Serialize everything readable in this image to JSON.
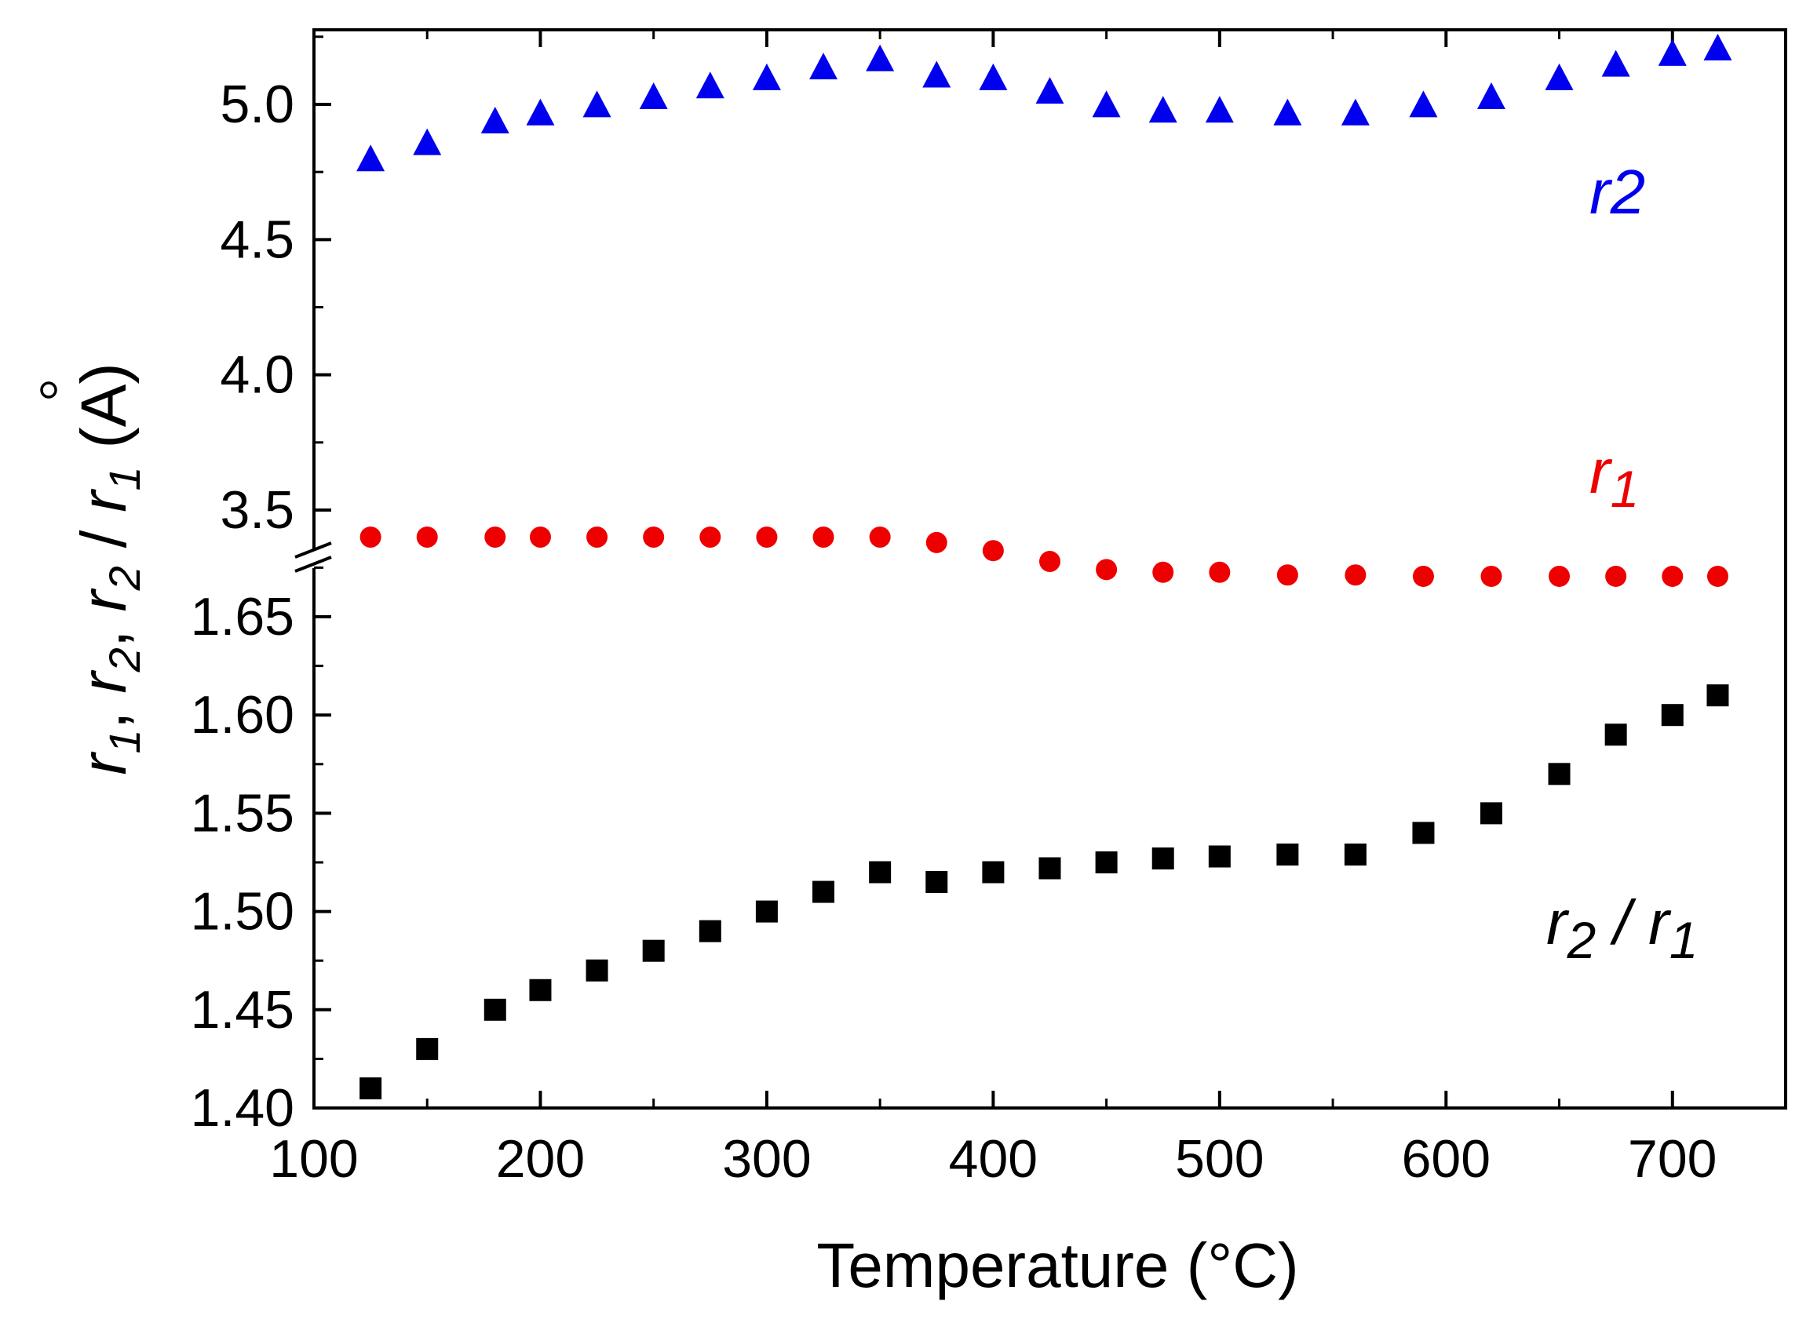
{
  "chart_data": {
    "type": "scatter",
    "xlabel": "Temperature (°C)",
    "ylabel": {
      "parts": [
        "r",
        "1",
        ", ",
        "r",
        "2",
        ", ",
        "r",
        "2",
        " / ",
        "r",
        "1",
        " (",
        "A",
        ")"
      ],
      "text": "r1, r2, r2 / r1 (Å)"
    },
    "xlim": [
      100,
      750
    ],
    "xticks": [
      "100",
      "200",
      "300",
      "400",
      "500",
      "600",
      "700"
    ],
    "xtick_values": [
      100,
      200,
      300,
      400,
      500,
      600,
      700
    ],
    "broken_axis": true,
    "upper_axis": {
      "ylim": [
        3.25,
        5.27
      ],
      "yticks": [
        "3.5",
        "4.0",
        "4.5",
        "5.0"
      ],
      "ytick_values": [
        3.5,
        4.0,
        4.5,
        5.0
      ]
    },
    "lower_axis": {
      "ylim": [
        1.4,
        1.67
      ],
      "yticks": [
        "1.40",
        "1.45",
        "1.50",
        "1.55",
        "1.60",
        "1.65"
      ],
      "ytick_values": [
        1.4,
        1.45,
        1.5,
        1.55,
        1.6,
        1.65
      ]
    },
    "series": [
      {
        "name": "r2",
        "label_parts": [
          "r",
          "2"
        ],
        "axis": "upper",
        "marker": "triangle",
        "color": "#0000ee",
        "x": [
          125,
          150,
          180,
          200,
          225,
          250,
          275,
          300,
          325,
          350,
          375,
          400,
          425,
          450,
          475,
          500,
          530,
          560,
          590,
          620,
          650,
          675,
          700,
          720
        ],
        "y": [
          4.79,
          4.85,
          4.93,
          4.96,
          4.99,
          5.02,
          5.06,
          5.09,
          5.13,
          5.16,
          5.1,
          5.09,
          5.04,
          4.99,
          4.97,
          4.97,
          4.96,
          4.96,
          4.99,
          5.02,
          5.09,
          5.14,
          5.18,
          5.2
        ]
      },
      {
        "name": "r1",
        "label_parts": [
          "r",
          "1"
        ],
        "axis": "upper",
        "marker": "circle",
        "color": "#ee0000",
        "x": [
          125,
          150,
          180,
          200,
          225,
          250,
          275,
          300,
          325,
          350,
          375,
          400,
          425,
          450,
          475,
          500,
          530,
          560,
          590,
          620,
          650,
          675,
          700,
          720
        ],
        "y": [
          3.4,
          3.4,
          3.4,
          3.4,
          3.4,
          3.4,
          3.4,
          3.4,
          3.4,
          3.4,
          3.38,
          3.35,
          3.31,
          3.28,
          3.27,
          3.27,
          3.26,
          3.26,
          3.255,
          3.255,
          3.255,
          3.255,
          3.255,
          3.255
        ]
      },
      {
        "name": "r2 / r1",
        "label_parts": [
          "r",
          "2",
          " / ",
          "r",
          "1"
        ],
        "axis": "lower",
        "marker": "square",
        "color": "#000000",
        "x": [
          125,
          150,
          180,
          200,
          225,
          250,
          275,
          300,
          325,
          350,
          375,
          400,
          425,
          450,
          475,
          500,
          530,
          560,
          590,
          620,
          650,
          675,
          700,
          720
        ],
        "y": [
          1.41,
          1.43,
          1.45,
          1.46,
          1.47,
          1.48,
          1.49,
          1.5,
          1.51,
          1.52,
          1.515,
          1.52,
          1.522,
          1.525,
          1.527,
          1.528,
          1.529,
          1.529,
          1.54,
          1.55,
          1.57,
          1.59,
          1.6,
          1.61
        ]
      }
    ]
  }
}
